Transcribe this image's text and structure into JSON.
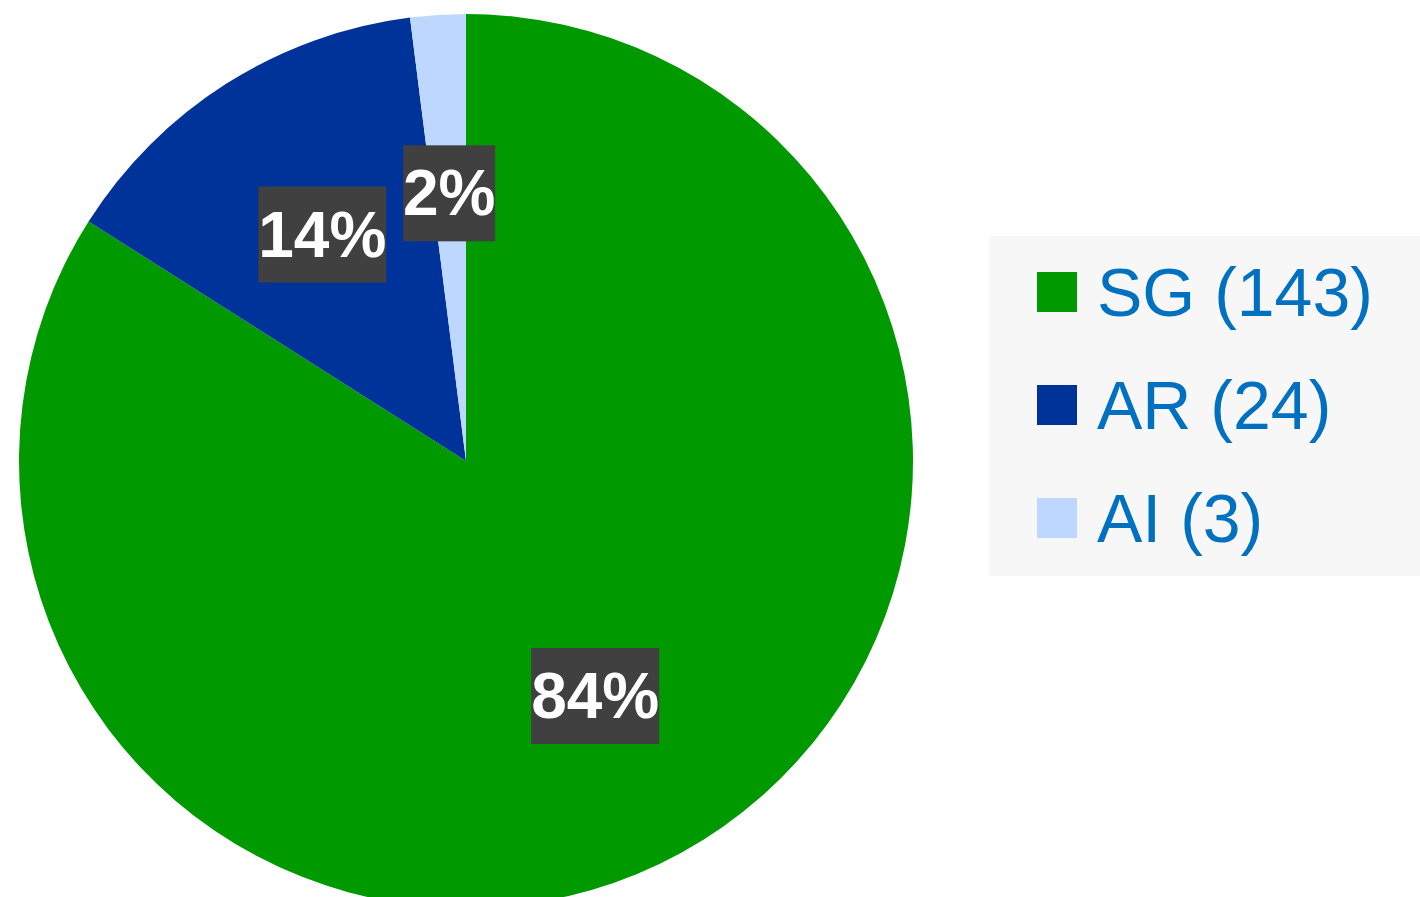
{
  "chart_data": {
    "type": "pie",
    "categories": [
      "SG (143)",
      "AR (24)",
      "AI (3)"
    ],
    "values": [
      84,
      14,
      2
    ],
    "colors": [
      "#009900",
      "#003399",
      "#bdd7ff"
    ],
    "value_labels": [
      "84%",
      "14%",
      "2%"
    ],
    "legend": "right"
  }
}
